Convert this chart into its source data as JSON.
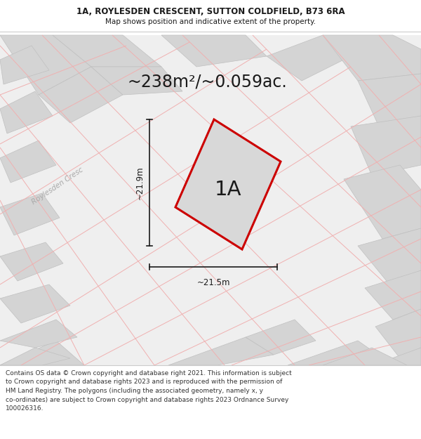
{
  "title_line1": "1A, ROYLESDEN CRESCENT, SUTTON COLDFIELD, B73 6RA",
  "title_line2": "Map shows position and indicative extent of the property.",
  "area_text": "~238m²/~0.059ac.",
  "label_1a": "1A",
  "dim_width": "~21.5m",
  "dim_height": "~21.9m",
  "street_label": "Roylesden Cresc",
  "footer_text": "Contains OS data © Crown copyright and database right 2021. This information is subject to Crown copyright and database rights 2023 and is reproduced with the permission of HM Land Registry. The polygons (including the associated geometry, namely x, y co-ordinates) are subject to Crown copyright and database rights 2023 Ordnance Survey 100026316.",
  "bg_color": "#ffffff",
  "map_bg": "#efefef",
  "plot_fill": "#d8d8d8",
  "plot_edge": "#cc0000",
  "grid_color": "#f0b0b0",
  "block_fill": "#d4d4d4",
  "block_edge": "#c0c0c0",
  "dim_line_color": "#1a1a1a",
  "title_color": "#1a1a1a",
  "label_color": "#1a1a1a",
  "street_color": "#aaaaaa",
  "footer_color": "#333333",
  "title_sep_color": "#cccccc"
}
